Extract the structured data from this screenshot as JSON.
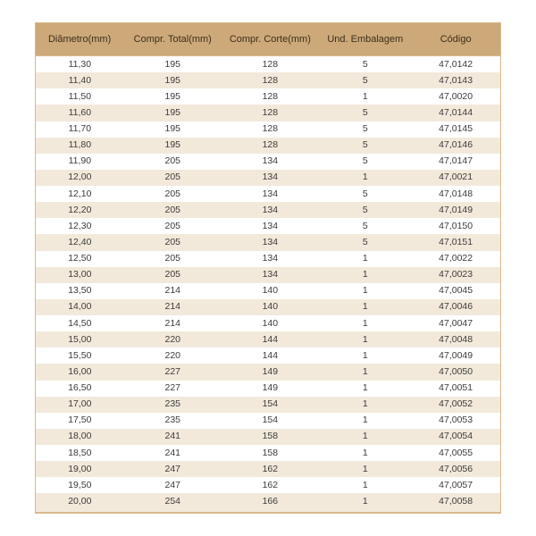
{
  "table": {
    "columns": [
      "Diâmetro(mm)",
      "Compr. Total(mm)",
      "Compr. Corte(mm)",
      "Und. Embalagem",
      "Código"
    ],
    "rows": [
      [
        "11,30",
        "195",
        "128",
        "5",
        "47,0142"
      ],
      [
        "11,40",
        "195",
        "128",
        "5",
        "47,0143"
      ],
      [
        "11,50",
        "195",
        "128",
        "1",
        "47,0020"
      ],
      [
        "11,60",
        "195",
        "128",
        "5",
        "47,0144"
      ],
      [
        "11,70",
        "195",
        "128",
        "5",
        "47,0145"
      ],
      [
        "11,80",
        "195",
        "128",
        "5",
        "47,0146"
      ],
      [
        "11,90",
        "205",
        "134",
        "5",
        "47,0147"
      ],
      [
        "12,00",
        "205",
        "134",
        "1",
        "47,0021"
      ],
      [
        "12,10",
        "205",
        "134",
        "5",
        "47,0148"
      ],
      [
        "12,20",
        "205",
        "134",
        "5",
        "47,0149"
      ],
      [
        "12,30",
        "205",
        "134",
        "5",
        "47,0150"
      ],
      [
        "12,40",
        "205",
        "134",
        "5",
        "47,0151"
      ],
      [
        "12,50",
        "205",
        "134",
        "1",
        "47,0022"
      ],
      [
        "13,00",
        "205",
        "134",
        "1",
        "47,0023"
      ],
      [
        "13,50",
        "214",
        "140",
        "1",
        "47,0045"
      ],
      [
        "14,00",
        "214",
        "140",
        "1",
        "47,0046"
      ],
      [
        "14,50",
        "214",
        "140",
        "1",
        "47,0047"
      ],
      [
        "15,00",
        "220",
        "144",
        "1",
        "47,0048"
      ],
      [
        "15,50",
        "220",
        "144",
        "1",
        "47,0049"
      ],
      [
        "16,00",
        "227",
        "149",
        "1",
        "47,0050"
      ],
      [
        "16,50",
        "227",
        "149",
        "1",
        "47,0051"
      ],
      [
        "17,00",
        "235",
        "154",
        "1",
        "47,0052"
      ],
      [
        "17,50",
        "235",
        "154",
        "1",
        "47,0053"
      ],
      [
        "18,00",
        "241",
        "158",
        "1",
        "47,0054"
      ],
      [
        "18,50",
        "241",
        "158",
        "1",
        "47,0055"
      ],
      [
        "19,00",
        "247",
        "162",
        "1",
        "47,0056"
      ],
      [
        "19,50",
        "247",
        "162",
        "1",
        "47,0057"
      ],
      [
        "20,00",
        "254",
        "166",
        "1",
        "47,0058"
      ]
    ],
    "header_bg": "#cda979",
    "row_odd_bg": "#ffffff",
    "row_even_bg": "#f3e9db",
    "border_color": "#d7b98d"
  }
}
